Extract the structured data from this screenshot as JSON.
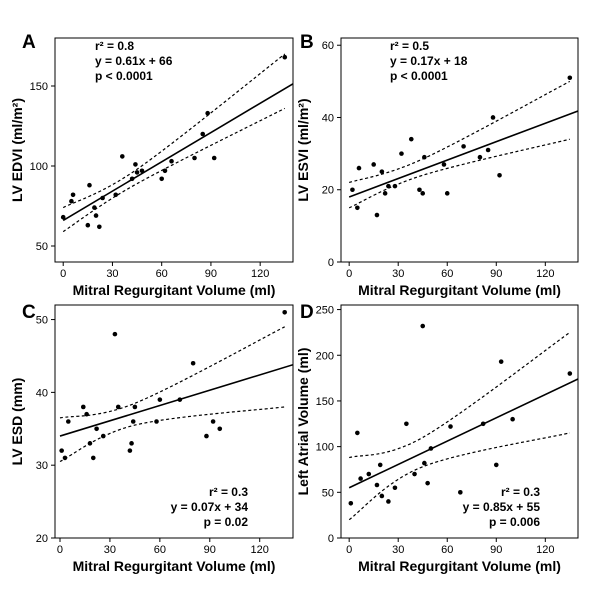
{
  "chart_data": [
    {
      "type": "scatter",
      "panel": "A",
      "xlabel": "Mitral Regurgitant Volume (ml)",
      "ylabel": "LV EDVI (ml/m²)",
      "xlim": [
        -5,
        140
      ],
      "ylim": [
        40,
        180
      ],
      "xticks": [
        "0",
        "30",
        "60",
        "90",
        "120"
      ],
      "xtick_values": [
        0,
        30,
        60,
        90,
        120
      ],
      "yticks": [
        "50",
        "100",
        "150"
      ],
      "ytick_values": [
        50,
        100,
        150
      ],
      "annotations": [
        "r² = 0.8",
        "y = 0.61x + 66",
        "p < 0.0001"
      ],
      "regression": {
        "slope": 0.61,
        "intercept": 66
      },
      "ci_lower": [
        [
          0,
          59
        ],
        [
          45,
          89
        ],
        [
          135,
          136
        ]
      ],
      "ci_upper": [
        [
          0,
          74
        ],
        [
          45,
          98
        ],
        [
          135,
          170
        ]
      ],
      "points": [
        [
          0,
          68
        ],
        [
          5,
          78
        ],
        [
          6,
          82
        ],
        [
          15,
          63
        ],
        [
          16,
          88
        ],
        [
          19,
          74
        ],
        [
          20,
          69
        ],
        [
          22,
          62
        ],
        [
          24,
          80
        ],
        [
          32,
          82
        ],
        [
          36,
          106
        ],
        [
          42,
          92
        ],
        [
          44,
          101
        ],
        [
          45,
          96
        ],
        [
          48,
          97
        ],
        [
          60,
          92
        ],
        [
          62,
          97
        ],
        [
          66,
          103
        ],
        [
          80,
          105
        ],
        [
          85,
          120
        ],
        [
          88,
          133
        ],
        [
          92,
          105
        ],
        [
          135,
          168
        ]
      ]
    },
    {
      "type": "scatter",
      "panel": "B",
      "xlabel": "Mitral Regurgitant Volume (ml)",
      "ylabel": "LV ESVI (ml/m²)",
      "xlim": [
        -5,
        140
      ],
      "ylim": [
        0,
        62
      ],
      "xticks": [
        "0",
        "30",
        "60",
        "90",
        "120"
      ],
      "xtick_values": [
        0,
        30,
        60,
        90,
        120
      ],
      "yticks": [
        "0",
        "20",
        "40",
        "60"
      ],
      "ytick_values": [
        0,
        20,
        40,
        60
      ],
      "annotations": [
        "r² = 0.5",
        "y = 0.17x + 18",
        "p < 0.0001"
      ],
      "regression": {
        "slope": 0.17,
        "intercept": 18
      },
      "ci_lower": [
        [
          0,
          15
        ],
        [
          45,
          24
        ],
        [
          135,
          34
        ]
      ],
      "ci_upper": [
        [
          0,
          22
        ],
        [
          45,
          28.5
        ],
        [
          135,
          50
        ]
      ],
      "points": [
        [
          2,
          20
        ],
        [
          5,
          15
        ],
        [
          6,
          26
        ],
        [
          15,
          27
        ],
        [
          17,
          13
        ],
        [
          20,
          25
        ],
        [
          22,
          19
        ],
        [
          24,
          21
        ],
        [
          28,
          21
        ],
        [
          32,
          30
        ],
        [
          38,
          34
        ],
        [
          43,
          20
        ],
        [
          45,
          19
        ],
        [
          46,
          29
        ],
        [
          58,
          27
        ],
        [
          60,
          19
        ],
        [
          70,
          32
        ],
        [
          80,
          29
        ],
        [
          85,
          31
        ],
        [
          88,
          40
        ],
        [
          92,
          24
        ],
        [
          135,
          51
        ]
      ]
    },
    {
      "type": "scatter",
      "panel": "C",
      "xlabel": "Mitral Regurgitant Volume (ml)",
      "ylabel": "LV ESD (mm)",
      "xlim": [
        -3,
        140
      ],
      "ylim": [
        20,
        52
      ],
      "xticks": [
        "0",
        "30",
        "60",
        "90",
        "120"
      ],
      "xtick_values": [
        0,
        30,
        60,
        90,
        120
      ],
      "yticks": [
        "20",
        "30",
        "40",
        "50"
      ],
      "ytick_values": [
        20,
        30,
        40,
        50
      ],
      "annotations": [
        "r² = 0.3",
        "y = 0.07x + 34",
        "p = 0.02"
      ],
      "regression": {
        "slope": 0.07,
        "intercept": 34
      },
      "ci_lower": [
        [
          0,
          30.5
        ],
        [
          45,
          35.5
        ],
        [
          135,
          38
        ]
      ],
      "ci_upper": [
        [
          0,
          36.5
        ],
        [
          45,
          38.5
        ],
        [
          135,
          49
        ]
      ],
      "points": [
        [
          1,
          32
        ],
        [
          3,
          31
        ],
        [
          5,
          36
        ],
        [
          14,
          38
        ],
        [
          16,
          37
        ],
        [
          18,
          33
        ],
        [
          20,
          31
        ],
        [
          22,
          35
        ],
        [
          26,
          34
        ],
        [
          33,
          48
        ],
        [
          35,
          38
        ],
        [
          42,
          32
        ],
        [
          43,
          33
        ],
        [
          44,
          36
        ],
        [
          45,
          38
        ],
        [
          58,
          36
        ],
        [
          60,
          39
        ],
        [
          72,
          39
        ],
        [
          80,
          44
        ],
        [
          88,
          34
        ],
        [
          92,
          36
        ],
        [
          96,
          35
        ],
        [
          135,
          51
        ]
      ]
    },
    {
      "type": "scatter",
      "panel": "D",
      "xlabel": "Mitral Regurgitant Volume (ml)",
      "ylabel": "Left Atrial Volume (ml)",
      "xlim": [
        -5,
        140
      ],
      "ylim": [
        0,
        255
      ],
      "xticks": [
        "0",
        "30",
        "60",
        "90",
        "120"
      ],
      "xtick_values": [
        0,
        30,
        60,
        90,
        120
      ],
      "yticks": [
        "0",
        "50",
        "100",
        "150",
        "200",
        "250"
      ],
      "ytick_values": [
        0,
        50,
        100,
        150,
        200,
        250
      ],
      "annotations": [
        "r² = 0.3",
        "y = 0.85x + 55",
        "p = 0.006"
      ],
      "regression": {
        "slope": 0.85,
        "intercept": 55
      },
      "ci_lower": [
        [
          0,
          20
        ],
        [
          45,
          78
        ],
        [
          135,
          115
        ]
      ],
      "ci_upper": [
        [
          0,
          88
        ],
        [
          45,
          110
        ],
        [
          135,
          225
        ]
      ],
      "points": [
        [
          1,
          38
        ],
        [
          5,
          115
        ],
        [
          7,
          65
        ],
        [
          12,
          70
        ],
        [
          17,
          58
        ],
        [
          19,
          80
        ],
        [
          20,
          46
        ],
        [
          24,
          40
        ],
        [
          28,
          55
        ],
        [
          35,
          125
        ],
        [
          40,
          70
        ],
        [
          45,
          232
        ],
        [
          46,
          82
        ],
        [
          48,
          60
        ],
        [
          50,
          98
        ],
        [
          62,
          122
        ],
        [
          68,
          50
        ],
        [
          82,
          125
        ],
        [
          90,
          80
        ],
        [
          93,
          193
        ],
        [
          100,
          130
        ],
        [
          135,
          180
        ]
      ]
    }
  ]
}
